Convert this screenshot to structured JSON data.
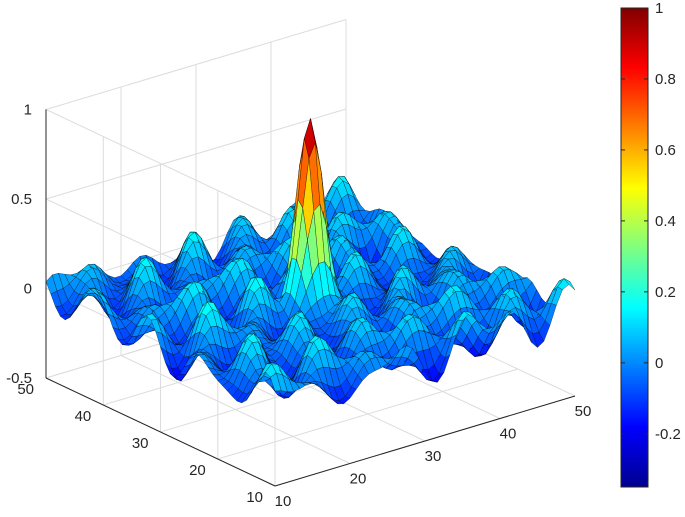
{
  "chart_data": {
    "type": "surface",
    "title": "",
    "xlabel": "",
    "ylabel": "",
    "zlabel": "",
    "xlim": [
      10,
      50
    ],
    "ylim": [
      10,
      50
    ],
    "zlim": [
      -0.5,
      1
    ],
    "x_ticks": [
      "10",
      "20",
      "30",
      "40",
      "50"
    ],
    "y_ticks": [
      "10",
      "20",
      "30",
      "40",
      "50"
    ],
    "z_ticks": [
      "-0.5",
      "0",
      "0.5",
      "1"
    ],
    "grid": true,
    "colormap": "jet",
    "edge_color": "#000000",
    "peak": {
      "x": 30,
      "y": 30,
      "z": 1
    },
    "z_min_approx": -0.35,
    "colorbar": {
      "position": "right",
      "range": [
        -0.35,
        1
      ],
      "tick_values": [
        -0.2,
        0,
        0.2,
        0.4,
        0.6,
        0.8,
        1
      ],
      "tick_labels": [
        "-0.2",
        "0",
        "0.2",
        "0.4",
        "0.6",
        "0.8",
        "1"
      ]
    }
  }
}
